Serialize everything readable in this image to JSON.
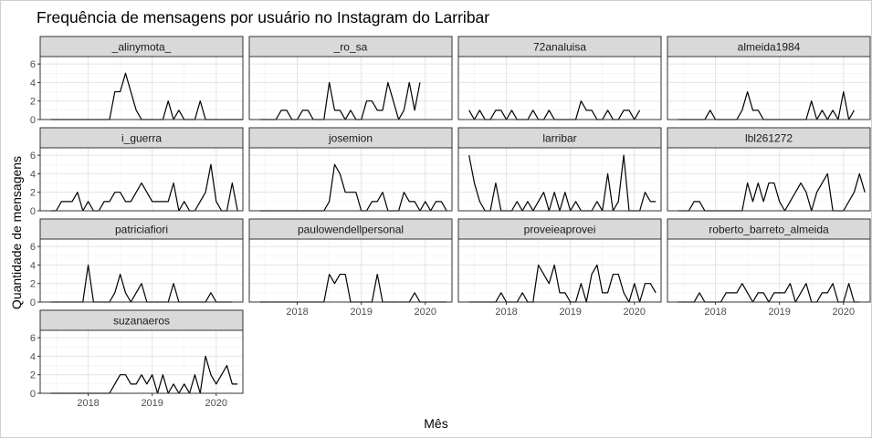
{
  "chart_data": {
    "type": "line",
    "title": "Frequência de mensagens por usuário no Instagram do Larribar",
    "xlabel": "Mês",
    "ylabel": "Quantidade de mensagens",
    "x_start": "2017-06",
    "x_step": "month",
    "xlim": [
      "2017-04",
      "2020-06"
    ],
    "ylim": [
      0,
      6.8
    ],
    "x_ticks": [
      "2018",
      "2019",
      "2020"
    ],
    "y_ticks": [
      "0",
      "2",
      "4",
      "6"
    ],
    "grid": true,
    "line_color": "#000000",
    "strip_color": "#d9d9d9",
    "series": [
      {
        "name": "_alinymota_",
        "values": [
          0,
          0,
          0,
          0,
          0,
          0,
          0,
          0,
          0,
          0,
          0,
          0,
          3,
          3,
          5,
          3,
          1,
          0,
          0,
          0,
          0,
          0,
          2,
          0,
          1,
          0,
          0,
          0,
          2,
          0,
          0,
          0,
          0,
          0,
          0,
          0,
          0
        ]
      },
      {
        "name": "_ro_sa",
        "values": [
          0,
          0,
          0,
          0,
          1,
          1,
          0,
          0,
          1,
          1,
          0,
          0,
          0,
          4,
          1,
          1,
          0,
          1,
          0,
          0,
          2,
          2,
          1,
          1,
          4,
          2,
          0,
          1,
          4,
          1,
          4
        ]
      },
      {
        "name": "72analuisa",
        "values": [
          1,
          0,
          1,
          0,
          0,
          1,
          1,
          0,
          1,
          0,
          0,
          0,
          1,
          0,
          0,
          1,
          0,
          0,
          0,
          0,
          0,
          2,
          1,
          1,
          0,
          0,
          1,
          0,
          0,
          1,
          1,
          0,
          1
        ]
      },
      {
        "name": "almeida1984",
        "values": [
          0,
          0,
          0,
          0,
          0,
          0,
          1,
          0,
          0,
          0,
          0,
          0,
          1,
          3,
          1,
          1,
          0,
          0,
          0,
          0,
          0,
          0,
          0,
          0,
          0,
          2,
          0,
          1,
          0,
          1,
          0,
          3,
          0,
          1
        ]
      },
      {
        "name": "i_guerra",
        "values": [
          0,
          0,
          1,
          1,
          1,
          2,
          0,
          1,
          0,
          0,
          1,
          1,
          2,
          2,
          1,
          1,
          2,
          3,
          2,
          1,
          1,
          1,
          1,
          3,
          0,
          1,
          0,
          0,
          1,
          2,
          5,
          1,
          0,
          0,
          3,
          0
        ]
      },
      {
        "name": "josemion",
        "values": [
          0,
          0,
          0,
          0,
          0,
          0,
          0,
          0,
          0,
          0,
          0,
          0,
          0,
          1,
          5,
          4,
          2,
          2,
          2,
          0,
          0,
          1,
          1,
          2,
          0,
          0,
          0,
          2,
          1,
          1,
          0,
          1,
          0,
          1,
          1,
          0
        ]
      },
      {
        "name": "larribar",
        "values": [
          6,
          3,
          1,
          0,
          0,
          3,
          0,
          0,
          0,
          1,
          0,
          1,
          0,
          1,
          2,
          0,
          2,
          0,
          2,
          0,
          1,
          0,
          0,
          0,
          1,
          0,
          4,
          0,
          1,
          6,
          0,
          0,
          0,
          2,
          1,
          1
        ]
      },
      {
        "name": "lbl261272",
        "values": [
          0,
          0,
          0,
          1,
          1,
          0,
          0,
          0,
          0,
          0,
          0,
          0,
          0,
          3,
          1,
          3,
          1,
          3,
          3,
          1,
          0,
          1,
          2,
          3,
          2,
          0,
          2,
          3,
          4,
          0,
          0,
          0,
          1,
          2,
          4,
          2
        ]
      },
      {
        "name": "patriciafiori",
        "values": [
          0,
          0,
          0,
          0,
          0,
          0,
          0,
          4,
          0,
          0,
          0,
          0,
          1,
          3,
          1,
          0,
          1,
          2,
          0,
          0,
          0,
          0,
          0,
          2,
          0,
          0,
          0,
          0,
          0,
          0,
          1,
          0,
          0,
          0,
          0
        ]
      },
      {
        "name": "paulowendellpersonal",
        "values": [
          0,
          0,
          0,
          0,
          0,
          0,
          0,
          0,
          0,
          0,
          0,
          0,
          0,
          3,
          2,
          3,
          3,
          0,
          0,
          0,
          0,
          0,
          3,
          0,
          0,
          0,
          0,
          0,
          0,
          1,
          0,
          0,
          0,
          0,
          0,
          0
        ]
      },
      {
        "name": "proveieaprovei",
        "values": [
          0,
          0,
          0,
          0,
          0,
          0,
          1,
          0,
          0,
          0,
          1,
          0,
          0,
          4,
          3,
          2,
          4,
          1,
          1,
          0,
          0,
          2,
          0,
          3,
          4,
          1,
          1,
          3,
          3,
          1,
          0,
          2,
          0,
          2,
          2,
          1
        ]
      },
      {
        "name": "roberto_barreto_almeida",
        "values": [
          0,
          0,
          0,
          0,
          1,
          0,
          0,
          0,
          0,
          1,
          1,
          1,
          2,
          1,
          0,
          1,
          1,
          0,
          1,
          1,
          1,
          2,
          0,
          1,
          2,
          0,
          0,
          1,
          1,
          2,
          0,
          0,
          2,
          0,
          0
        ]
      },
      {
        "name": "suzanaeros",
        "values": [
          0,
          0,
          0,
          0,
          0,
          0,
          0,
          0,
          0,
          0,
          0,
          0,
          1,
          2,
          2,
          1,
          1,
          2,
          1,
          2,
          0,
          2,
          0,
          1,
          0,
          1,
          0,
          2,
          0,
          4,
          2,
          1,
          2,
          3,
          1,
          1
        ]
      }
    ]
  }
}
